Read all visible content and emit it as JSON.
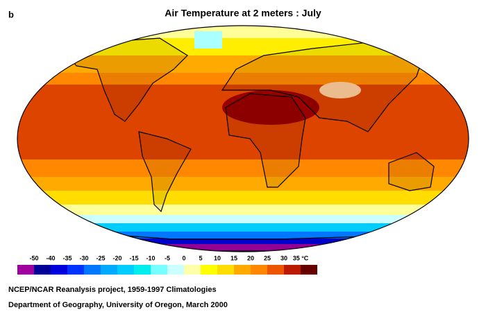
{
  "panel_label": "b",
  "title": "Air Temperature at 2 meters : July",
  "legend": {
    "colors": [
      "#a000a0",
      "#000099",
      "#0000dd",
      "#0033ff",
      "#0077ff",
      "#00aaff",
      "#00ccff",
      "#00eeee",
      "#77ffff",
      "#ccffff",
      "#ffffaa",
      "#ffff00",
      "#ffdd00",
      "#ffaa00",
      "#ff8800",
      "#ee5500",
      "#bb1a00",
      "#660000"
    ],
    "labels": [
      "-50",
      "-40",
      "-35",
      "-30",
      "-25",
      "-20",
      "-15",
      "-10",
      "-5",
      "0",
      "5",
      "10",
      "15",
      "20",
      "25",
      "30",
      "35 °C"
    ]
  },
  "credits": [
    "NCEP/NCAR Reanalysis project, 1959-1997 Climatologies",
    "Department of Geography, University of Oregon, March 2000"
  ]
}
